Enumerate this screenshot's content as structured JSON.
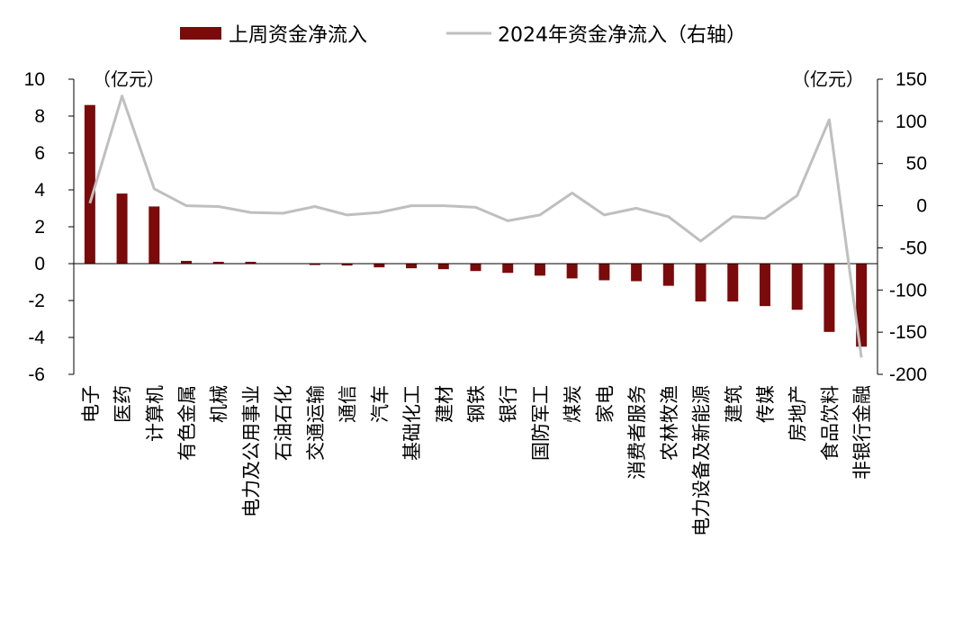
{
  "chart_data": {
    "type": "bar",
    "legend": {
      "bar_series": "上周资金净流入",
      "line_series": "2024年资金净流入（右轴）",
      "placement": "top"
    },
    "left_axis": {
      "unit_label": "（亿元）",
      "ylim": [
        -6,
        10
      ],
      "ticks": [
        10,
        8,
        6,
        4,
        2,
        0,
        -2,
        -4,
        -6
      ]
    },
    "right_axis": {
      "unit_label": "（亿元）",
      "ylim": [
        -200,
        150
      ],
      "ticks": [
        150,
        100,
        50,
        0,
        -50,
        -100,
        -150,
        -200
      ]
    },
    "categories": [
      "电子",
      "医药",
      "计算机",
      "有色金属",
      "机械",
      "电力及公用事业",
      "石油石化",
      "交通运输",
      "通信",
      "汽车",
      "基础化工",
      "建材",
      "钢铁",
      "银行",
      "国防军工",
      "煤炭",
      "家电",
      "消费者服务",
      "农林牧渔",
      "电力设备及新能源",
      "建筑",
      "传媒",
      "房地产",
      "食品饮料",
      "非银行金融"
    ],
    "series": [
      {
        "name": "上周资金净流入",
        "type": "bar",
        "axis": "left",
        "color": "#7B0A0A",
        "values": [
          8.6,
          3.8,
          3.1,
          0.15,
          0.1,
          0.1,
          0.0,
          -0.05,
          -0.1,
          -0.2,
          -0.25,
          -0.3,
          -0.4,
          -0.5,
          -0.65,
          -0.8,
          -0.9,
          -0.95,
          -1.2,
          -2.05,
          -2.05,
          -2.3,
          -2.5,
          -3.7,
          -4.5
        ]
      },
      {
        "name": "2024年资金净流入（右轴）",
        "type": "line",
        "axis": "right",
        "color": "#BFBFBF",
        "values": [
          3,
          130,
          20,
          0,
          -1,
          -8,
          -9,
          -1,
          -11,
          -8,
          0,
          0,
          -2,
          -18,
          -11,
          15,
          -11,
          -3,
          -13,
          -42,
          -13,
          -15,
          12,
          102,
          -180
        ]
      }
    ],
    "grid": false
  }
}
